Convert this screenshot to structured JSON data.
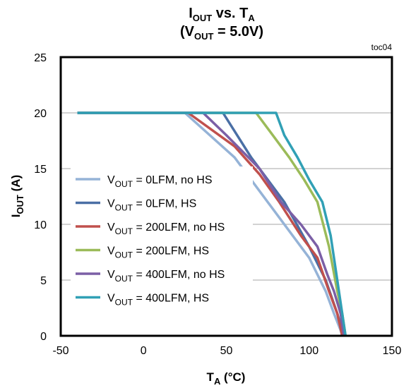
{
  "chart_data": {
    "type": "line",
    "title": {
      "base": "I",
      "sub": "OUT",
      "rest": " vs. T",
      "sub2": "A"
    },
    "subtitle": {
      "open": "(V",
      "sub": "OUT",
      "rest": " = 5.0V)"
    },
    "note": "toc04",
    "xlabel": {
      "base": "T",
      "sub": "A",
      "rest": " (°C)"
    },
    "ylabel": {
      "base": "I",
      "sub": "OUT",
      "rest": " (A)"
    },
    "xlim": [
      -50,
      150
    ],
    "ylim": [
      0,
      25
    ],
    "xticks": [
      "-50",
      "0",
      "50",
      "100",
      "150"
    ],
    "yticks": [
      "0",
      "5",
      "10",
      "15",
      "20",
      "25"
    ],
    "grid": "horizontal",
    "legend_position": "left",
    "series": [
      {
        "name_prefix": "V",
        "name_sub": "OUT",
        "name_rest": " = 0LFM, no HS",
        "color": "#95B3D7",
        "x": [
          -40,
          25,
          55,
          75,
          90,
          100,
          110,
          115,
          119,
          120
        ],
        "y": [
          20,
          20,
          16,
          12,
          9,
          7,
          4,
          2,
          0.5,
          0
        ]
      },
      {
        "name_prefix": "V",
        "name_sub": "OUT",
        "name_rest": " = 0LFM, HS",
        "color": "#4A6FA5",
        "x": [
          -40,
          48,
          65,
          85,
          100,
          110,
          117,
          121
        ],
        "y": [
          20,
          20,
          16,
          12,
          8,
          5,
          2,
          0
        ]
      },
      {
        "name_prefix": "V",
        "name_sub": "OUT",
        "name_rest": " = 200LFM, no HS",
        "color": "#C0504D",
        "x": [
          -40,
          27,
          55,
          70,
          82,
          95,
          105,
          112,
          117,
          120
        ],
        "y": [
          20,
          20,
          17,
          14.5,
          12,
          9,
          7,
          4,
          2,
          0
        ]
      },
      {
        "name_prefix": "V",
        "name_sub": "OUT",
        "name_rest": " = 200LFM, HS",
        "color": "#9BBB59",
        "x": [
          -40,
          68,
          78,
          88,
          97,
          105,
          112,
          117,
          120,
          122
        ],
        "y": [
          20,
          20,
          18,
          16,
          14,
          12,
          8,
          4,
          2,
          0
        ]
      },
      {
        "name_prefix": "V",
        "name_sub": "OUT",
        "name_rest": " = 400LFM, no HS",
        "color": "#7B5FA6",
        "x": [
          -40,
          36,
          50,
          60,
          70,
          83,
          95,
          105,
          111,
          115,
          119,
          121
        ],
        "y": [
          20,
          20,
          18,
          16.5,
          15,
          12,
          10,
          8,
          5.5,
          4,
          2,
          0
        ]
      },
      {
        "name_prefix": "V",
        "name_sub": "OUT",
        "name_rest": " = 400LFM, HS",
        "color": "#31A0B5",
        "x": [
          -40,
          80,
          85,
          93,
          100,
          108,
          113,
          117,
          120,
          122
        ],
        "y": [
          20,
          20,
          18,
          16,
          14,
          12,
          9,
          5,
          2,
          0
        ]
      }
    ]
  }
}
